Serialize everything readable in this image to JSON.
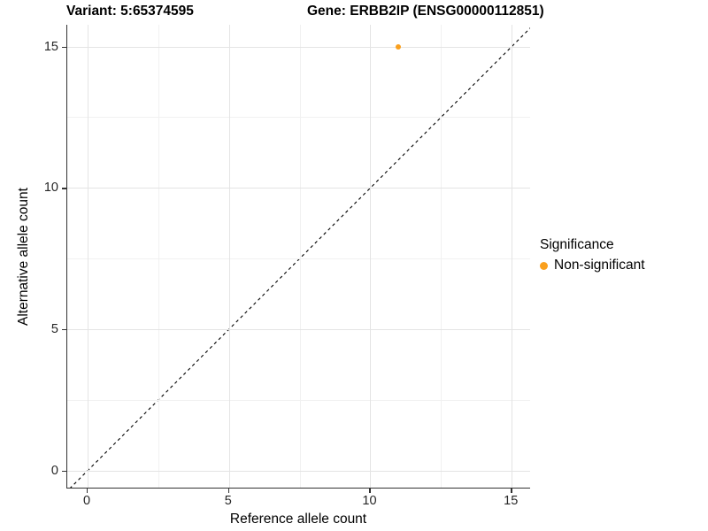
{
  "titles": {
    "variant": "Variant: 5:65374595",
    "gene": "Gene: ERBB2IP (ENSG00000112851)"
  },
  "chart_data": {
    "type": "scatter",
    "title_left": "Variant: 5:65374595",
    "title_right": "Gene: ERBB2IP (ENSG00000112851)",
    "xlabel": "Reference allele count",
    "ylabel": "Alternative allele count",
    "xlim": [
      -0.72,
      15.65
    ],
    "ylim": [
      -0.6,
      15.77
    ],
    "x_major_ticks": [
      0,
      5,
      10,
      15
    ],
    "x_minor_ticks": [
      2.5,
      7.5,
      12.5
    ],
    "y_major_ticks": [
      0,
      5,
      10,
      15
    ],
    "y_minor_ticks": [
      2.5,
      7.5,
      12.5
    ],
    "grid": true,
    "points": [
      {
        "x": 11,
        "y": 15,
        "series": "Non-significant",
        "color": "#FAA01E"
      }
    ],
    "identity_line": {
      "dashed": true,
      "color": "#000000",
      "slope": 1,
      "intercept": 0
    },
    "legend": {
      "title": "Significance",
      "position": "right",
      "items": [
        {
          "label": "Non-significant",
          "color": "#FAA01E"
        }
      ]
    },
    "colors": {
      "grid_major": "#e4e4e4",
      "grid_minor": "#f1f1f1",
      "axis_line": "#333333",
      "point_orange": "#FAA01E"
    }
  }
}
